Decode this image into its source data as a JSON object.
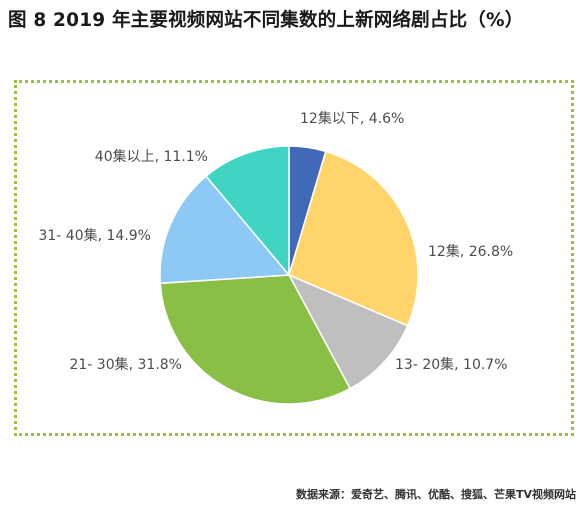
{
  "title": "图 8 2019 年主要视频网站不同集数的上新网络剧占比（%）",
  "source": "数据来源：爱奇艺、腾讯、优酷、搜狐、芒果TV视频网站",
  "chart_data": {
    "type": "pie",
    "start_angle_deg": 0,
    "direction": "clockwise",
    "slices": [
      {
        "label": "12集以下",
        "value": 4.6,
        "display": "12集以下, 4.6%",
        "color": "#4169b8"
      },
      {
        "label": "12集",
        "value": 26.8,
        "display": "12集, 26.8%",
        "color": "#ffd56b"
      },
      {
        "label": "13- 20集",
        "value": 10.7,
        "display": "13- 20集, 10.7%",
        "color": "#bfbfbf"
      },
      {
        "label": "21- 30集",
        "value": 31.8,
        "display": "21- 30集, 31.8%",
        "color": "#8abf45"
      },
      {
        "label": "31- 40集",
        "value": 14.9,
        "display": "31- 40集, 14.9%",
        "color": "#8ec9f5"
      },
      {
        "label": "40集以上",
        "value": 11.1,
        "display": "40集以上, 11.1%",
        "color": "#40d5c3"
      }
    ]
  }
}
